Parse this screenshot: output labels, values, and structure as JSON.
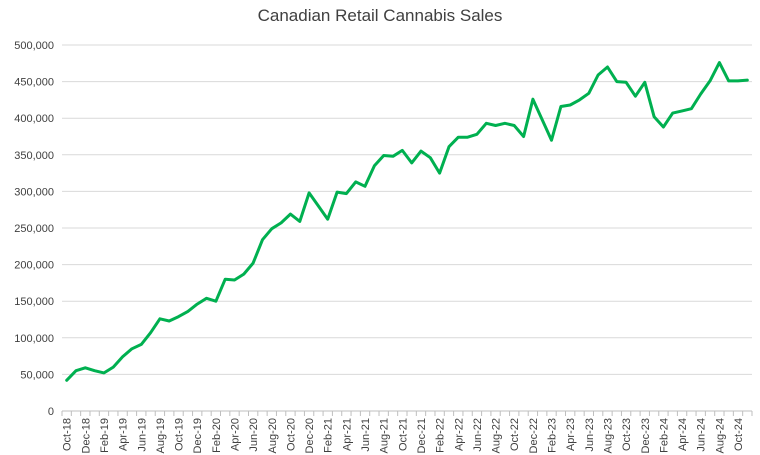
{
  "chart_data": {
    "type": "line",
    "title": "Canadian Retail Cannabis Sales",
    "xlabel": "",
    "ylabel": "",
    "ylim": [
      0,
      500000
    ],
    "yticks": [
      "0",
      "50,000",
      "100,000",
      "150,000",
      "200,000",
      "250,000",
      "300,000",
      "350,000",
      "400,000",
      "450,000",
      "500,000"
    ],
    "grid": true,
    "legend": "none",
    "line_color": "#00b050",
    "categories": [
      "Oct-18",
      "Nov-18",
      "Dec-18",
      "Jan-19",
      "Feb-19",
      "Mar-19",
      "Apr-19",
      "May-19",
      "Jun-19",
      "Jul-19",
      "Aug-19",
      "Sep-19",
      "Oct-19",
      "Nov-19",
      "Dec-19",
      "Jan-20",
      "Feb-20",
      "Mar-20",
      "Apr-20",
      "May-20",
      "Jun-20",
      "Jul-20",
      "Aug-20",
      "Sep-20",
      "Oct-20",
      "Nov-20",
      "Dec-20",
      "Jan-21",
      "Feb-21",
      "Mar-21",
      "Apr-21",
      "May-21",
      "Jun-21",
      "Jul-21",
      "Aug-21",
      "Sep-21",
      "Oct-21",
      "Nov-21",
      "Dec-21",
      "Jan-22",
      "Feb-22",
      "Mar-22",
      "Apr-22",
      "May-22",
      "Jun-22",
      "Jul-22",
      "Aug-22",
      "Sep-22",
      "Oct-22",
      "Nov-22",
      "Dec-22",
      "Jan-23",
      "Feb-23",
      "Mar-23",
      "Apr-23",
      "May-23",
      "Jun-23",
      "Jul-23",
      "Aug-23",
      "Sep-23",
      "Oct-23",
      "Nov-23",
      "Dec-23",
      "Jan-24",
      "Feb-24",
      "Mar-24",
      "Apr-24",
      "May-24",
      "Jun-24",
      "Jul-24",
      "Aug-24",
      "Sep-24",
      "Oct-24",
      "Nov-24"
    ],
    "tick_labels": [
      "Oct-18",
      "Dec-18",
      "Feb-19",
      "Apr-19",
      "Jun-19",
      "Aug-19",
      "Oct-19",
      "Dec-19",
      "Feb-20",
      "Apr-20",
      "Jun-20",
      "Aug-20",
      "Oct-20",
      "Dec-20",
      "Feb-21",
      "Apr-21",
      "Jun-21",
      "Aug-21",
      "Oct-21",
      "Dec-21",
      "Feb-22",
      "Apr-22",
      "Jun-22",
      "Aug-22",
      "Oct-22",
      "Dec-22",
      "Feb-23",
      "Apr-23",
      "Jun-23",
      "Aug-23",
      "Oct-23",
      "Dec-23",
      "Feb-24",
      "Apr-24",
      "Jun-24",
      "Aug-24",
      "Oct-24"
    ],
    "series": [
      {
        "values": [
          42000,
          55000,
          59000,
          55000,
          52000,
          60000,
          74000,
          85000,
          91000,
          107000,
          126000,
          123000,
          129000,
          136000,
          146000,
          154000,
          150000,
          180000,
          179000,
          187000,
          202000,
          234000,
          249000,
          257000,
          269000,
          259000,
          298000,
          280000,
          262000,
          299000,
          297000,
          313000,
          307000,
          335000,
          349000,
          348000,
          356000,
          339000,
          355000,
          346000,
          325000,
          361000,
          374000,
          374000,
          378000,
          393000,
          390000,
          393000,
          390000,
          375000,
          426000,
          398000,
          370000,
          416000,
          418000,
          425000,
          434000,
          459000,
          470000,
          450000,
          449000,
          430000,
          449000,
          402000,
          388000,
          407000,
          410000,
          413000,
          433000,
          451000,
          476000,
          451000,
          451000,
          452000
        ]
      }
    ]
  }
}
